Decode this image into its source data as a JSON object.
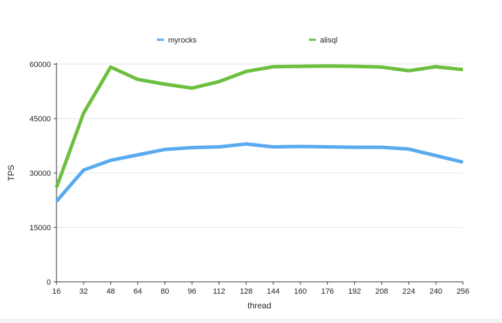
{
  "chart_data": {
    "type": "line",
    "xlabel": "thread",
    "ylabel": "TPS",
    "x": [
      16,
      32,
      48,
      64,
      80,
      96,
      112,
      128,
      144,
      160,
      176,
      192,
      208,
      224,
      240,
      256
    ],
    "ylim": [
      0,
      60000
    ],
    "yticks": [
      0,
      15000,
      30000,
      45000,
      60000
    ],
    "grid": true,
    "legend_position": "top",
    "series": [
      {
        "name": "myrocks",
        "color": "#5aaaf0",
        "values": [
          22200,
          30800,
          33500,
          35000,
          36500,
          37000,
          37200,
          38000,
          37200,
          37300,
          37200,
          37100,
          37100,
          36600,
          34800,
          33000
        ]
      },
      {
        "name": "alisql",
        "color": "#6cbf3f",
        "values": [
          26000,
          46500,
          59200,
          55800,
          54500,
          53400,
          55200,
          58000,
          59300,
          59400,
          59500,
          59400,
          59200,
          58200,
          59300,
          58500
        ]
      }
    ]
  }
}
